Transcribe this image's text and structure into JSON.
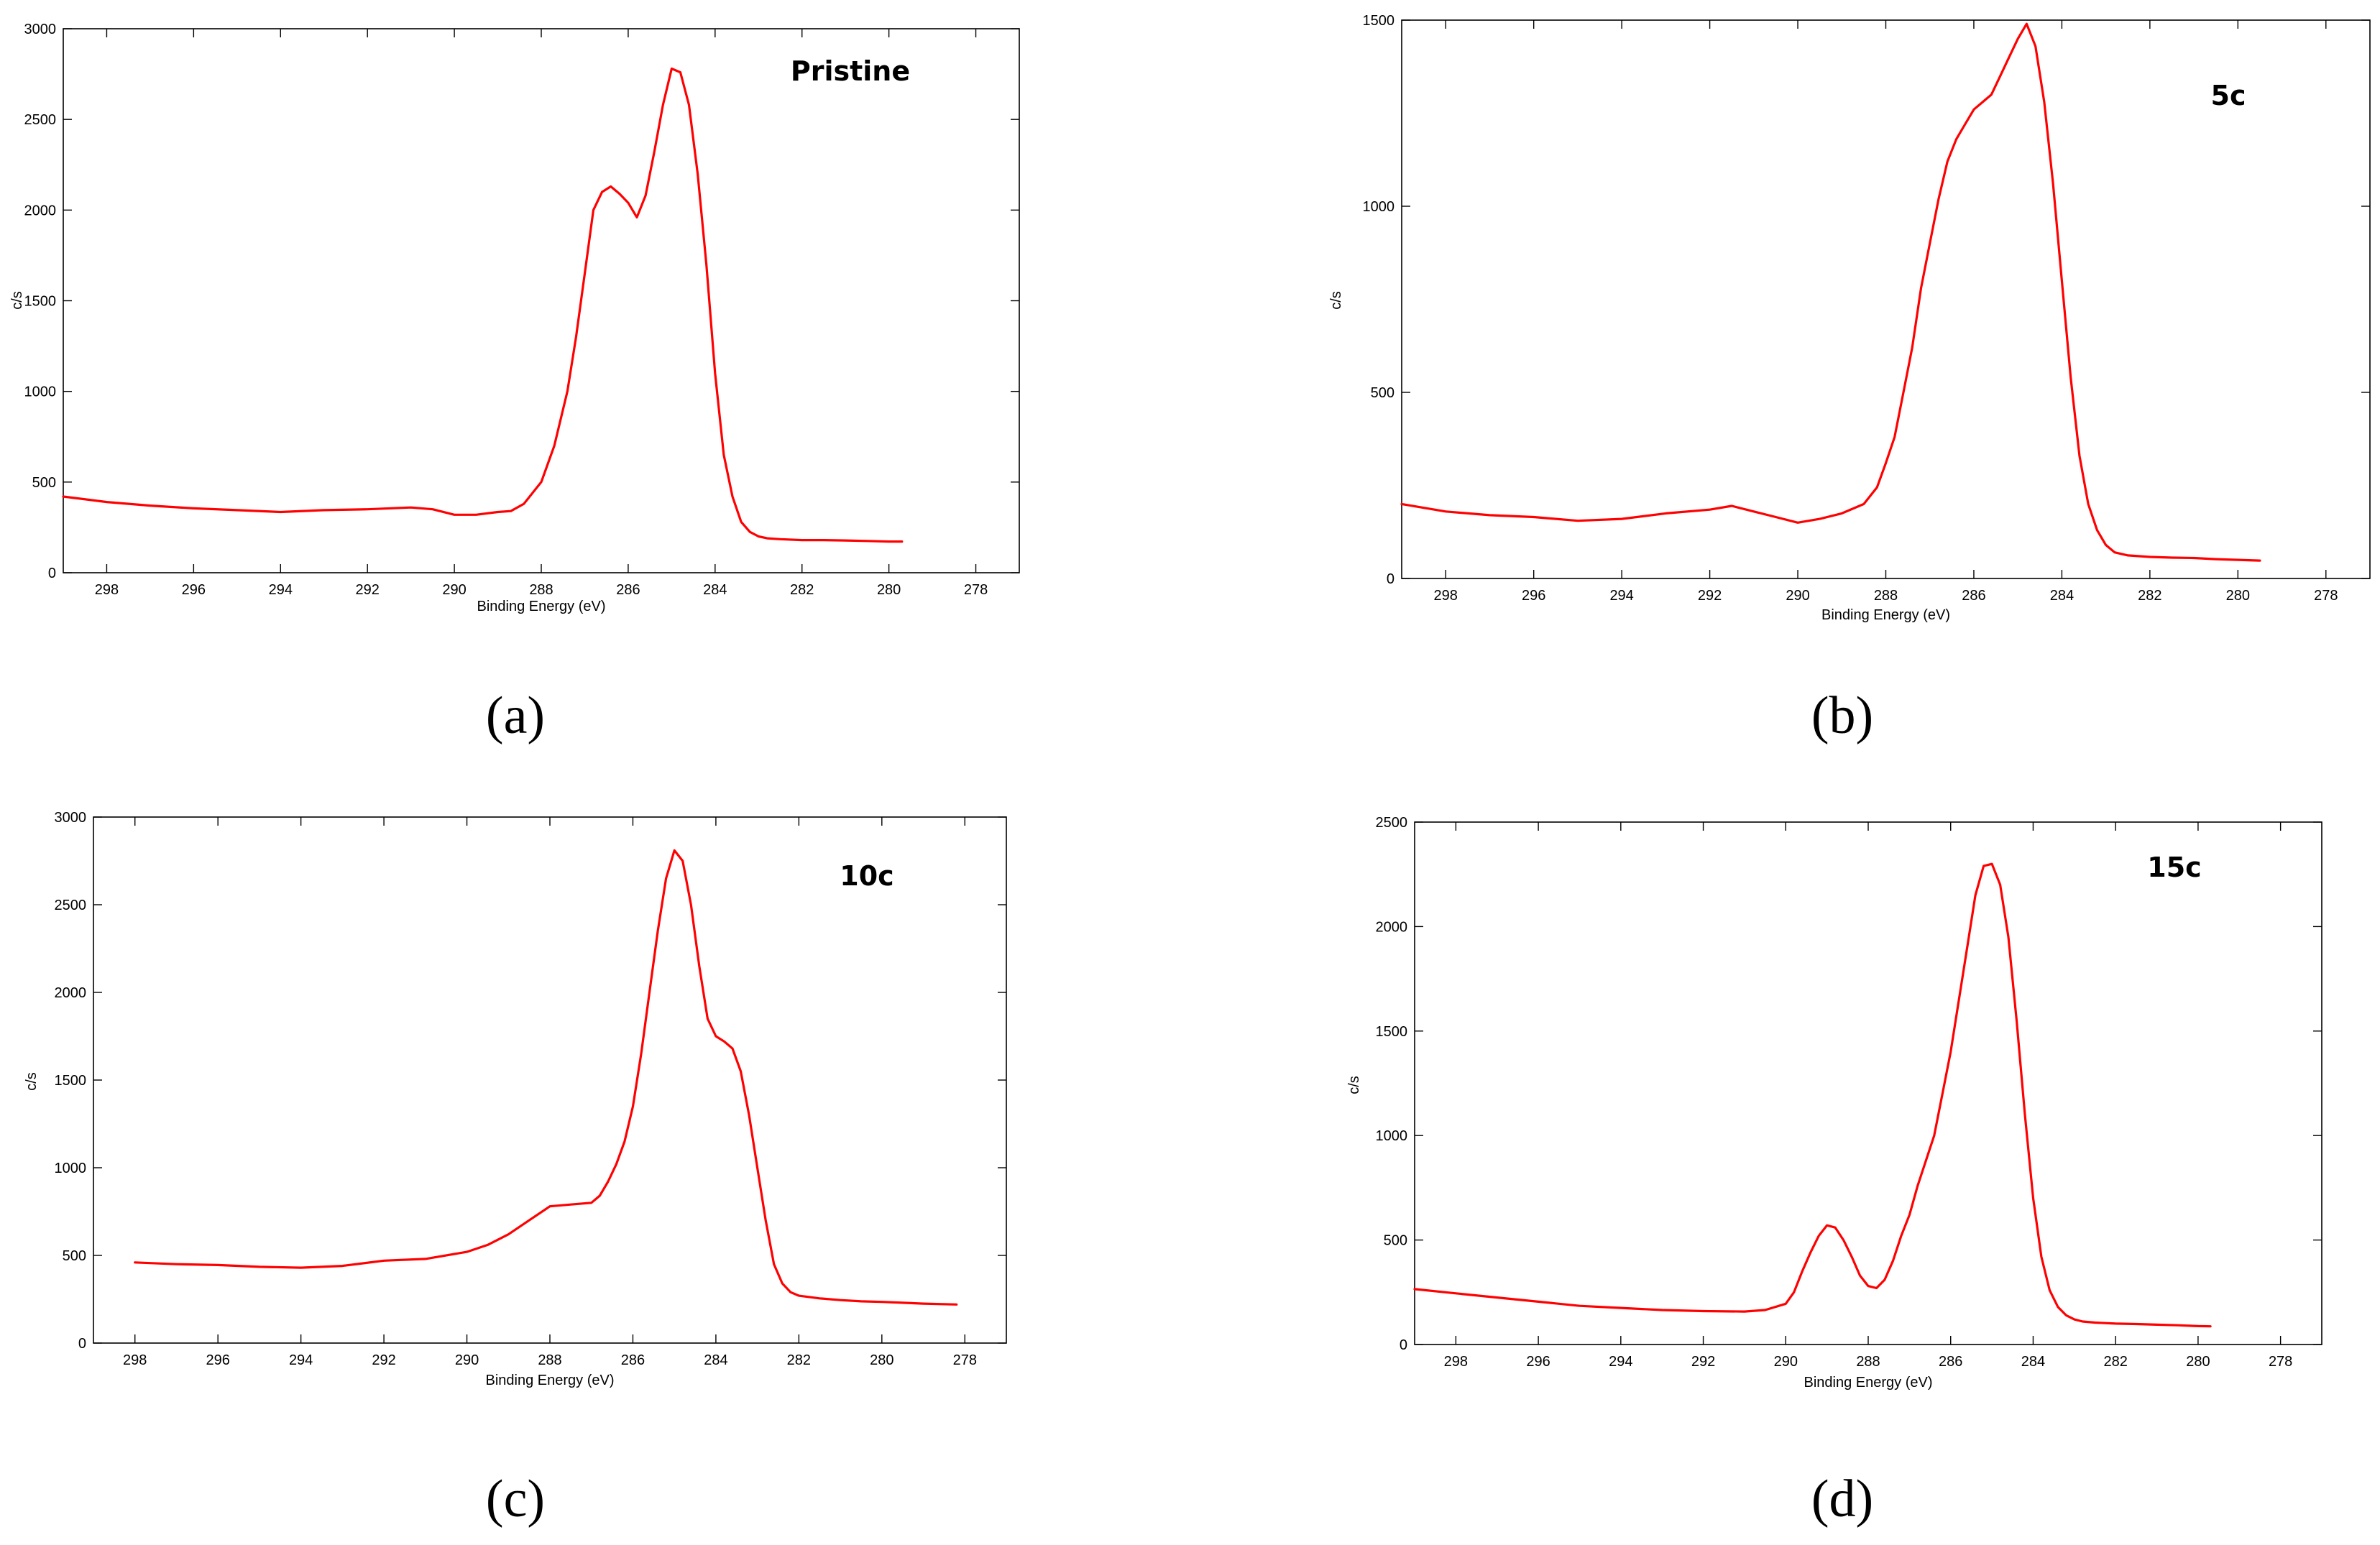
{
  "chart_data": [
    {
      "type": "line",
      "panel_label": "(a)",
      "annotation": "Pristine",
      "xlabel": "Binding Energy (eV)",
      "ylabel": "c/s",
      "xlim": [
        299,
        277
      ],
      "ylim": [
        0,
        3000
      ],
      "x_reversed": true,
      "xticks": [
        298,
        296,
        294,
        292,
        290,
        288,
        286,
        284,
        282,
        280,
        278
      ],
      "yticks": [
        0,
        500,
        1000,
        1500,
        2000,
        2500,
        3000
      ],
      "grid": false,
      "series_color": "#ff0000",
      "series": [
        {
          "x": [
            299,
            298,
            297,
            296,
            295,
            294,
            293,
            292,
            291,
            290.5,
            290,
            289.5,
            289,
            288.7,
            288.4,
            288,
            287.7,
            287.4,
            287.2,
            287,
            286.8,
            286.6,
            286.4,
            286.2,
            286,
            285.8,
            285.6,
            285.4,
            285.2,
            285,
            284.8,
            284.6,
            284.4,
            284.2,
            284,
            283.8,
            283.6,
            283.4,
            283.2,
            283,
            282.8,
            282.5,
            282,
            281.5,
            281,
            280.5,
            280,
            279.7
          ],
          "y": [
            420,
            390,
            370,
            355,
            345,
            335,
            345,
            350,
            360,
            350,
            320,
            320,
            335,
            340,
            380,
            500,
            700,
            1000,
            1300,
            1650,
            2000,
            2100,
            2130,
            2090,
            2040,
            1960,
            2080,
            2320,
            2580,
            2780,
            2760,
            2580,
            2200,
            1700,
            1100,
            650,
            420,
            280,
            225,
            200,
            190,
            185,
            180,
            180,
            178,
            175,
            172,
            172
          ]
        }
      ]
    },
    {
      "type": "line",
      "panel_label": "(b)",
      "annotation": "5c",
      "xlabel": "Binding Energy (eV)",
      "ylabel": "c/s",
      "xlim": [
        299,
        277
      ],
      "ylim": [
        0,
        1500
      ],
      "x_reversed": true,
      "xticks": [
        298,
        296,
        294,
        292,
        290,
        288,
        286,
        284,
        282,
        280,
        278
      ],
      "yticks": [
        0,
        500,
        1000,
        1500
      ],
      "grid": false,
      "series_color": "#ff0000",
      "series": [
        {
          "x": [
            299,
            298,
            297,
            296,
            295,
            294,
            293,
            292,
            291.5,
            291,
            290.5,
            290,
            289.5,
            289,
            288.5,
            288.2,
            288,
            287.8,
            287.6,
            287.4,
            287.2,
            287,
            286.8,
            286.6,
            286.4,
            286.2,
            286,
            285.8,
            285.6,
            285.4,
            285.2,
            285,
            284.8,
            284.6,
            284.4,
            284.2,
            284,
            283.8,
            283.6,
            283.4,
            283.2,
            283,
            282.8,
            282.5,
            282,
            281.5,
            281,
            280.5,
            280,
            279.5
          ],
          "y": [
            200,
            180,
            170,
            165,
            155,
            160,
            175,
            185,
            195,
            180,
            165,
            150,
            160,
            175,
            200,
            245,
            310,
            380,
            500,
            620,
            780,
            900,
            1020,
            1120,
            1180,
            1220,
            1260,
            1280,
            1300,
            1350,
            1400,
            1450,
            1490,
            1430,
            1280,
            1060,
            800,
            540,
            330,
            200,
            130,
            90,
            70,
            62,
            58,
            56,
            55,
            52,
            50,
            48
          ]
        }
      ]
    },
    {
      "type": "line",
      "panel_label": "(c)",
      "annotation": "10c",
      "xlabel": "Binding Energy (eV)",
      "ylabel": "c/s",
      "xlim": [
        299,
        277
      ],
      "ylim": [
        0,
        3000
      ],
      "x_reversed": true,
      "xticks": [
        298,
        296,
        294,
        292,
        290,
        288,
        286,
        284,
        282,
        280,
        278
      ],
      "yticks": [
        0,
        500,
        1000,
        1500,
        2000,
        2500,
        3000
      ],
      "grid": false,
      "series_color": "#ff0000",
      "series": [
        {
          "x": [
            298,
            297,
            296,
            295,
            294,
            293,
            292,
            291,
            290,
            289.5,
            289,
            288.5,
            288,
            287.5,
            287,
            286.8,
            286.6,
            286.4,
            286.2,
            286,
            285.8,
            285.6,
            285.4,
            285.2,
            285,
            284.8,
            284.6,
            284.4,
            284.2,
            284,
            283.8,
            283.6,
            283.4,
            283.2,
            283,
            282.8,
            282.6,
            282.4,
            282.2,
            282,
            281.5,
            281,
            280.5,
            280,
            279.5,
            279,
            278.2
          ],
          "y": [
            460,
            450,
            445,
            435,
            430,
            440,
            470,
            480,
            520,
            560,
            620,
            700,
            780,
            790,
            800,
            840,
            920,
            1020,
            1150,
            1350,
            1650,
            2000,
            2350,
            2650,
            2810,
            2750,
            2500,
            2150,
            1850,
            1750,
            1720,
            1680,
            1550,
            1300,
            1000,
            700,
            450,
            340,
            290,
            270,
            255,
            245,
            238,
            235,
            230,
            225,
            220
          ]
        }
      ]
    },
    {
      "type": "line",
      "panel_label": "(d)",
      "annotation": "15c",
      "xlabel": "Binding Energy (eV)",
      "ylabel": "c/s",
      "xlim": [
        299,
        277
      ],
      "ylim": [
        0,
        2500
      ],
      "x_reversed": true,
      "xticks": [
        298,
        296,
        294,
        292,
        290,
        288,
        286,
        284,
        282,
        280,
        278
      ],
      "yticks": [
        0,
        500,
        1000,
        1500,
        2000,
        2500
      ],
      "grid": false,
      "series_color": "#ff0000",
      "series": [
        {
          "x": [
            299,
            298,
            297,
            296,
            295,
            294,
            293,
            292,
            291,
            290.5,
            290,
            289.8,
            289.6,
            289.4,
            289.2,
            289,
            288.8,
            288.6,
            288.4,
            288.2,
            288,
            287.8,
            287.6,
            287.4,
            287.2,
            287,
            286.8,
            286.6,
            286.4,
            286.2,
            286,
            285.8,
            285.6,
            285.4,
            285.2,
            285,
            284.8,
            284.6,
            284.4,
            284.2,
            284,
            283.8,
            283.6,
            283.4,
            283.2,
            283,
            282.8,
            282.5,
            282,
            281.5,
            281,
            280.5,
            280,
            279.7
          ],
          "y": [
            265,
            245,
            225,
            205,
            185,
            175,
            165,
            160,
            158,
            165,
            195,
            250,
            350,
            440,
            520,
            570,
            560,
            500,
            420,
            330,
            280,
            270,
            310,
            400,
            520,
            620,
            760,
            880,
            1000,
            1200,
            1400,
            1650,
            1900,
            2150,
            2290,
            2300,
            2200,
            1950,
            1550,
            1100,
            700,
            420,
            260,
            180,
            140,
            120,
            110,
            105,
            100,
            98,
            95,
            92,
            88,
            87
          ]
        }
      ]
    }
  ]
}
